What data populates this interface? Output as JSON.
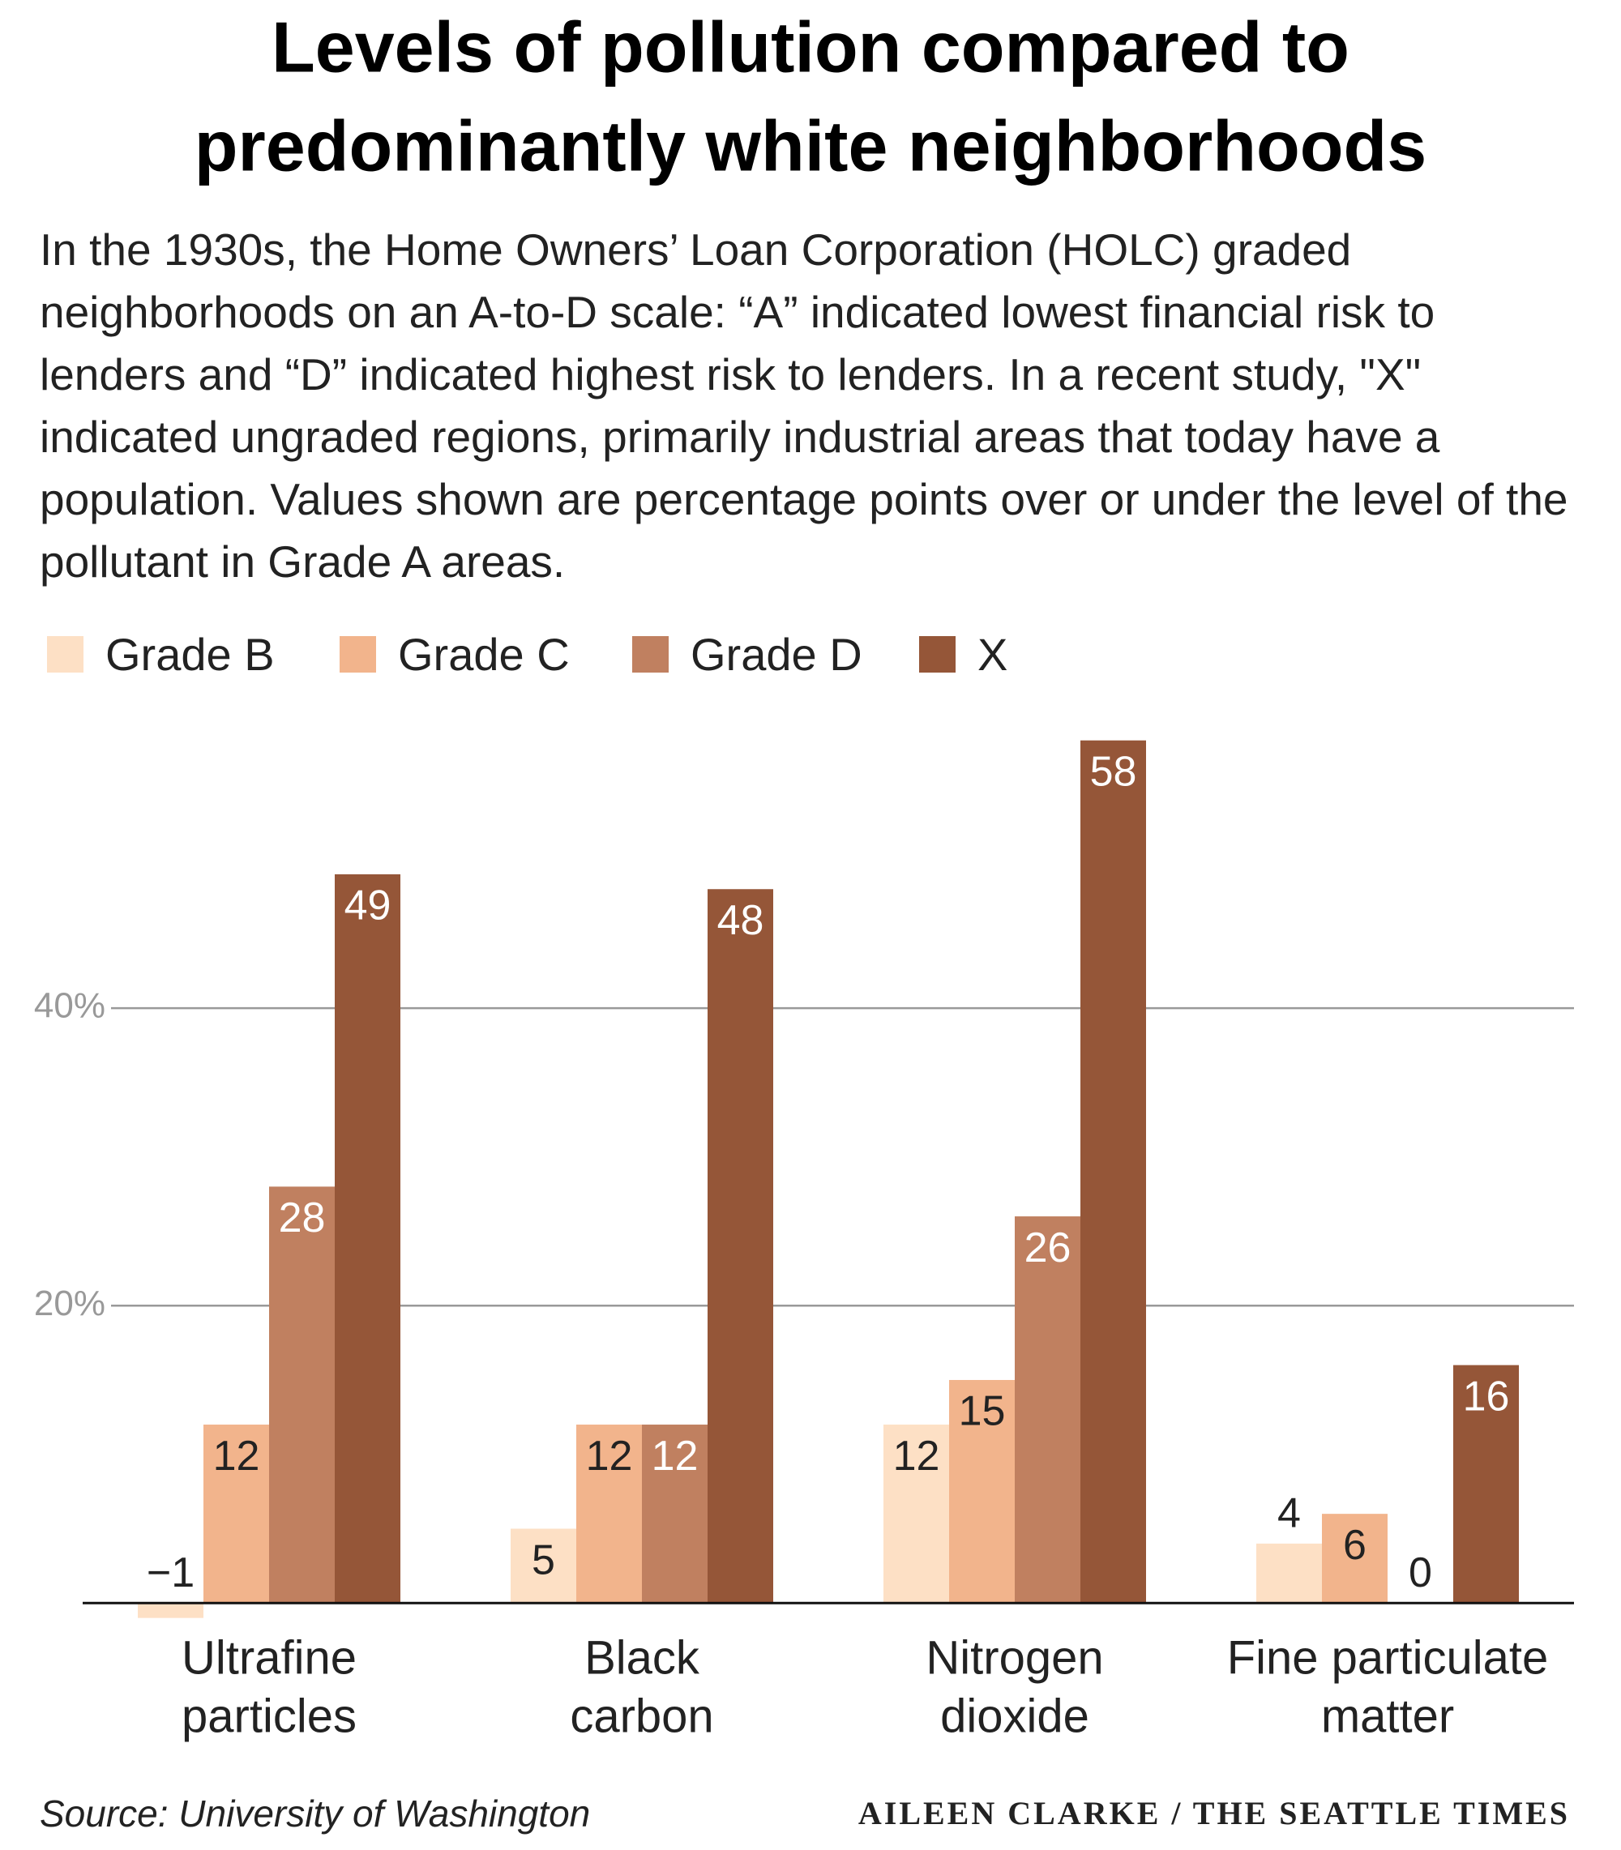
{
  "chart_data": {
    "type": "bar",
    "title": [
      "Levels of pollution compared to",
      "predominantly white neighborhoods"
    ],
    "subtitle": "In the 1930s, the Home Owners’ Loan Corporation (HOLC) graded neighborhoods on an A-to-D scale: “A” indicated lowest financial risk to lenders and “D” indicated highest risk to lenders. In a recent study, \"X\" indicated ungraded regions, primarily industrial areas that today have a population. Values shown are percentage points over or under the level of the pollutant in Grade A areas.",
    "categories": [
      [
        "Ultrafine",
        "particles"
      ],
      [
        "Black",
        "carbon"
      ],
      [
        "Nitrogen",
        "dioxide"
      ],
      [
        "Fine particulate",
        "matter"
      ]
    ],
    "series": [
      {
        "name": "Grade B",
        "color": "#fde0c5",
        "values": [
          -1,
          5,
          12,
          4
        ],
        "value_labels": [
          "−1",
          "5",
          "12",
          "4"
        ]
      },
      {
        "name": "Grade C",
        "color": "#f2b48c",
        "values": [
          12,
          12,
          15,
          6
        ]
      },
      {
        "name": "Grade D",
        "color": "#c08060",
        "values": [
          28,
          12,
          26,
          0
        ]
      },
      {
        "name": "X",
        "color": "#955638",
        "values": [
          49,
          48,
          58,
          16
        ]
      }
    ],
    "ylim": [
      -2,
      60
    ],
    "yticks": [
      {
        "value": 20,
        "label": "20%"
      },
      {
        "value": 40,
        "label": "40%"
      }
    ],
    "grid": true,
    "source": "Source: University of Washington",
    "credit": "AILEEN CLARKE / THE SEATTLE TIMES"
  }
}
